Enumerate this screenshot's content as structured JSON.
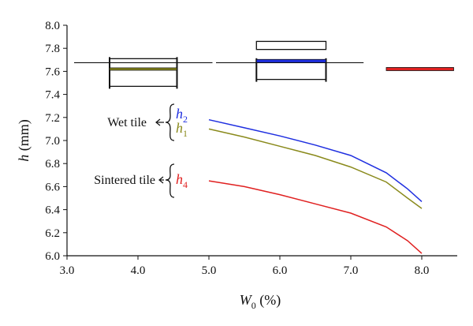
{
  "chart_data": {
    "type": "line",
    "xlabel": "W",
    "xlabel_subscript": "0",
    "xlabel_unit": " (%)",
    "ylabel": "h",
    "ylabel_unit": " (mm)",
    "xlim": [
      3.0,
      8.5
    ],
    "ylim": [
      6.0,
      8.0
    ],
    "x_ticks": [
      3.0,
      4.0,
      5.0,
      6.0,
      7.0,
      8.0
    ],
    "y_ticks": [
      6.0,
      6.2,
      6.4,
      6.6,
      6.8,
      7.0,
      7.2,
      7.4,
      7.6,
      7.8,
      8.0
    ],
    "grid": false,
    "legend": "none",
    "series": [
      {
        "name": "h",
        "sub": "2",
        "color": "#1f2fe0",
        "x": [
          5.0,
          5.5,
          6.0,
          6.5,
          7.0,
          7.5,
          7.8,
          8.0
        ],
        "y": [
          7.18,
          7.11,
          7.04,
          6.96,
          6.87,
          6.72,
          6.58,
          6.47
        ]
      },
      {
        "name": "h",
        "sub": "1",
        "color": "#8a8a1c",
        "x": [
          5.0,
          5.5,
          6.0,
          6.5,
          7.0,
          7.5,
          7.8,
          8.0
        ],
        "y": [
          7.1,
          7.03,
          6.95,
          6.87,
          6.77,
          6.64,
          6.5,
          6.41
        ]
      },
      {
        "name": "h",
        "sub": "4",
        "color": "#e02020",
        "x": [
          5.0,
          5.5,
          6.0,
          6.5,
          7.0,
          7.5,
          7.8,
          8.0
        ],
        "y": [
          6.65,
          6.6,
          6.53,
          6.45,
          6.37,
          6.25,
          6.13,
          6.02
        ]
      }
    ],
    "annotations": [
      {
        "text": "Wet tile",
        "series": [
          "h2",
          "h1"
        ]
      },
      {
        "text": "Sintered tile",
        "series": [
          "h4"
        ]
      }
    ],
    "tile_diagrams": [
      {
        "stage": "wet",
        "x": [
          3.6,
          4.55
        ],
        "y_top": 7.71,
        "y_bottom": 7.47,
        "y_band": 7.62,
        "band_color": "#8a8a1c"
      },
      {
        "stage": "dried",
        "x": [
          5.67,
          6.65
        ],
        "y_top": 7.7,
        "y_bottom": 7.53,
        "y_band": 7.69,
        "band_color": "#1f2fe0",
        "extra_box": {
          "x": [
            5.67,
            6.65
          ],
          "y_top": 7.86,
          "y_bottom": 7.79
        }
      },
      {
        "stage": "sintered",
        "x": [
          7.5,
          8.45
        ],
        "y_band": 7.62,
        "band_color": "#e02020"
      }
    ],
    "reference_lines": [
      {
        "x": [
          3.1,
          5.05
        ],
        "y": 7.675
      },
      {
        "x": [
          5.1,
          7.18
        ],
        "y": 7.675
      }
    ]
  },
  "labels": {
    "wet_tile": "Wet tile",
    "sintered_tile": "Sintered tile",
    "h2_main": "h",
    "h2_sub": "2",
    "h1_main": "h",
    "h1_sub": "1",
    "h4_main": "h",
    "h4_sub": "4",
    "xlabel_main": "W",
    "xlabel_sub": "0",
    "xlabel_unit": " (%)",
    "ylabel_main": "h",
    "ylabel_unit": " (mm)"
  }
}
